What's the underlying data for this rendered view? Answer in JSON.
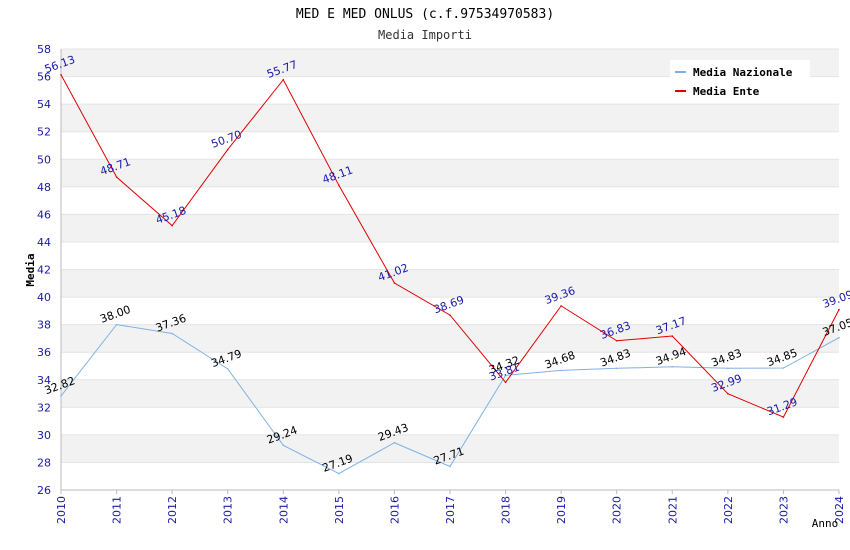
{
  "chart_data": {
    "type": "line",
    "title": "MED E MED ONLUS (c.f.97534970583)",
    "subtitle": "Media Importi",
    "xlabel": "Anno",
    "ylabel": "Media",
    "x": [
      "2010",
      "2011",
      "2012",
      "2013",
      "2014",
      "2015",
      "2016",
      "2017",
      "2018",
      "2019",
      "2020",
      "2021",
      "2022",
      "2023",
      "2024"
    ],
    "ylim": [
      26,
      58
    ],
    "yticks": [
      26,
      28,
      30,
      32,
      34,
      36,
      38,
      40,
      42,
      44,
      46,
      48,
      50,
      52,
      54,
      56,
      58
    ],
    "grid": "horizontal-bands",
    "legend_position": "top-right",
    "series": [
      {
        "name": "Media Nazionale",
        "color": "#7fb2e5",
        "label_color": "#000000",
        "values": [
          32.82,
          38.0,
          37.36,
          34.79,
          29.24,
          27.19,
          29.43,
          27.71,
          34.32,
          34.68,
          34.83,
          34.94,
          34.83,
          34.85,
          37.05
        ],
        "labels": [
          "32.82",
          "38.00",
          "37.36",
          "34.79",
          "29.24",
          "27.19",
          "29.43",
          "27.71",
          "34.32",
          "34.68",
          "34.83",
          "34.94",
          "34.83",
          "34.85",
          "37.05"
        ]
      },
      {
        "name": "Media Ente",
        "color": "#e00000",
        "label_color": "#1a1aa6",
        "values": [
          56.13,
          48.71,
          45.18,
          50.7,
          55.77,
          48.11,
          41.02,
          38.69,
          33.81,
          39.36,
          36.83,
          37.17,
          32.99,
          31.29,
          39.09
        ],
        "labels": [
          "56.13",
          "48.71",
          "45.18",
          "50.70",
          "55.77",
          "48.11",
          "41.02",
          "38.69",
          "33.81",
          "39.36",
          "36.83",
          "37.17",
          "32.99",
          "31.29",
          "39.09"
        ]
      }
    ]
  }
}
